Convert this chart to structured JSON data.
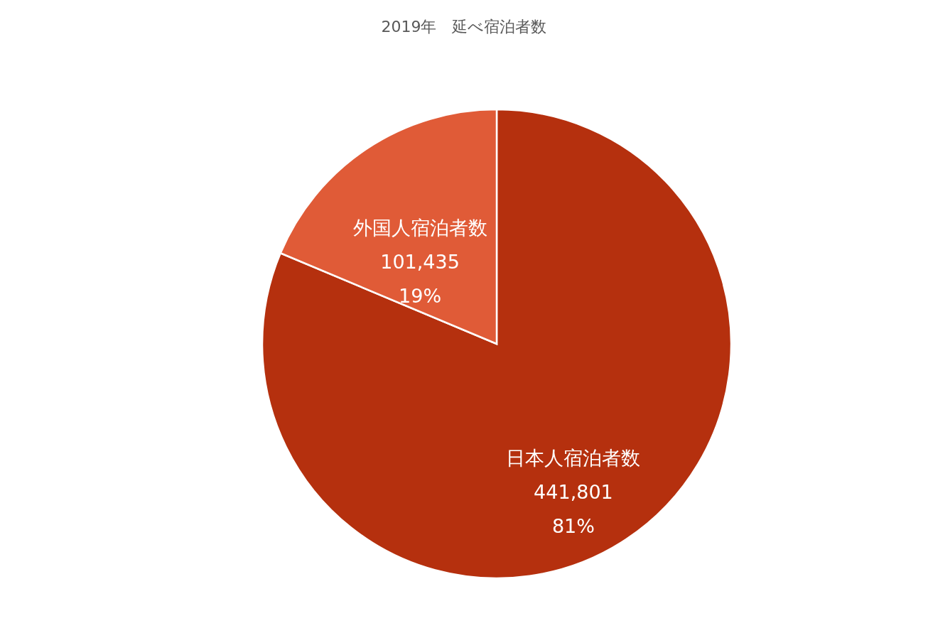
{
  "chart_data": {
    "type": "pie",
    "title": "2019年　延べ宿泊者数",
    "categories": [
      "日本人宿泊者数",
      "外国人宿泊者数"
    ],
    "values": [
      441801,
      101435
    ],
    "value_labels": [
      "441,801\n81%",
      "101,435\n19%"
    ],
    "colors": [
      "#b5300e",
      "#e05b37"
    ],
    "legend": false
  }
}
